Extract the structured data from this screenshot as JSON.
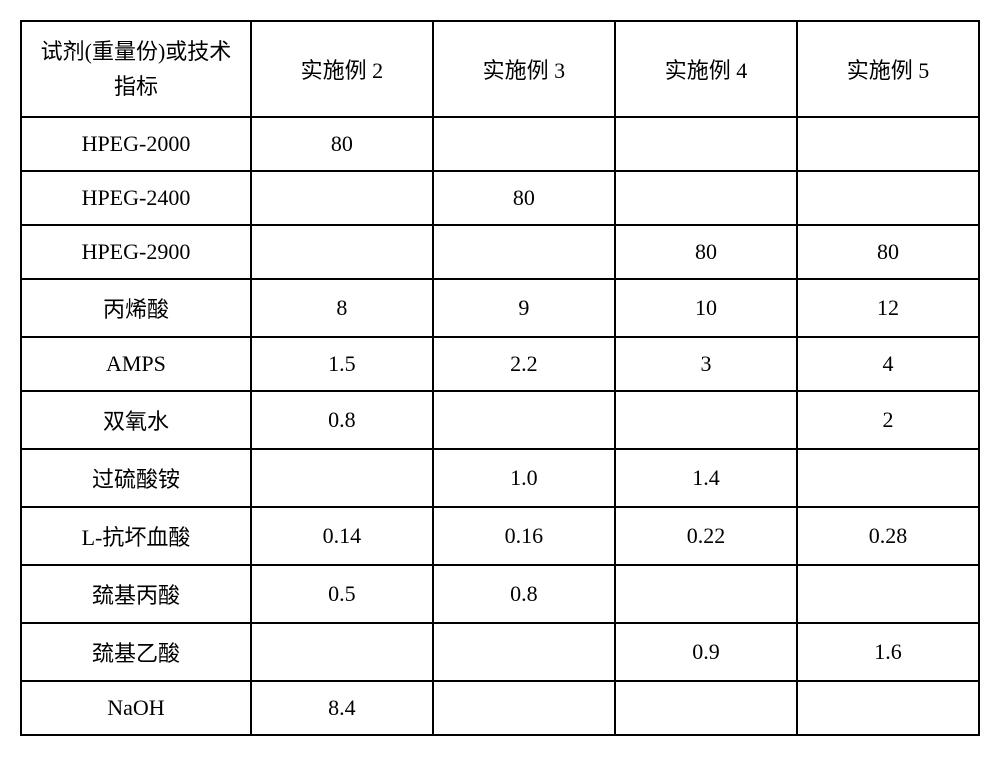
{
  "table": {
    "columns": [
      "试剂(重量份)或技术指标",
      "实施例 2",
      "实施例 3",
      "实施例 4",
      "实施例 5"
    ],
    "rows": [
      {
        "label": "HPEG-2000",
        "cells": [
          "80",
          "",
          "",
          ""
        ]
      },
      {
        "label": "HPEG-2400",
        "cells": [
          "",
          "80",
          "",
          ""
        ]
      },
      {
        "label": "HPEG-2900",
        "cells": [
          "",
          "",
          "80",
          "80"
        ]
      },
      {
        "label": "丙烯酸",
        "cells": [
          "8",
          "9",
          "10",
          "12"
        ]
      },
      {
        "label": "AMPS",
        "cells": [
          "1.5",
          "2.2",
          "3",
          "4"
        ]
      },
      {
        "label": "双氧水",
        "cells": [
          "0.8",
          "",
          "",
          "2"
        ]
      },
      {
        "label": "过硫酸铵",
        "cells": [
          "",
          "1.0",
          "1.4",
          ""
        ]
      },
      {
        "label": "L-抗坏血酸",
        "cells": [
          "0.14",
          "0.16",
          "0.22",
          "0.28"
        ]
      },
      {
        "label": "巯基丙酸",
        "cells": [
          "0.5",
          "0.8",
          "",
          ""
        ]
      },
      {
        "label": "巯基乙酸",
        "cells": [
          "",
          "",
          "0.9",
          "1.6"
        ]
      },
      {
        "label": "NaOH",
        "cells": [
          "8.4",
          "",
          "",
          ""
        ]
      }
    ],
    "border_color": "#000000",
    "background_color": "#ffffff",
    "text_color": "#000000",
    "font_size": 22,
    "col_header_width_pct": 24,
    "col_data_width_pct": 19,
    "border_width": 2
  }
}
